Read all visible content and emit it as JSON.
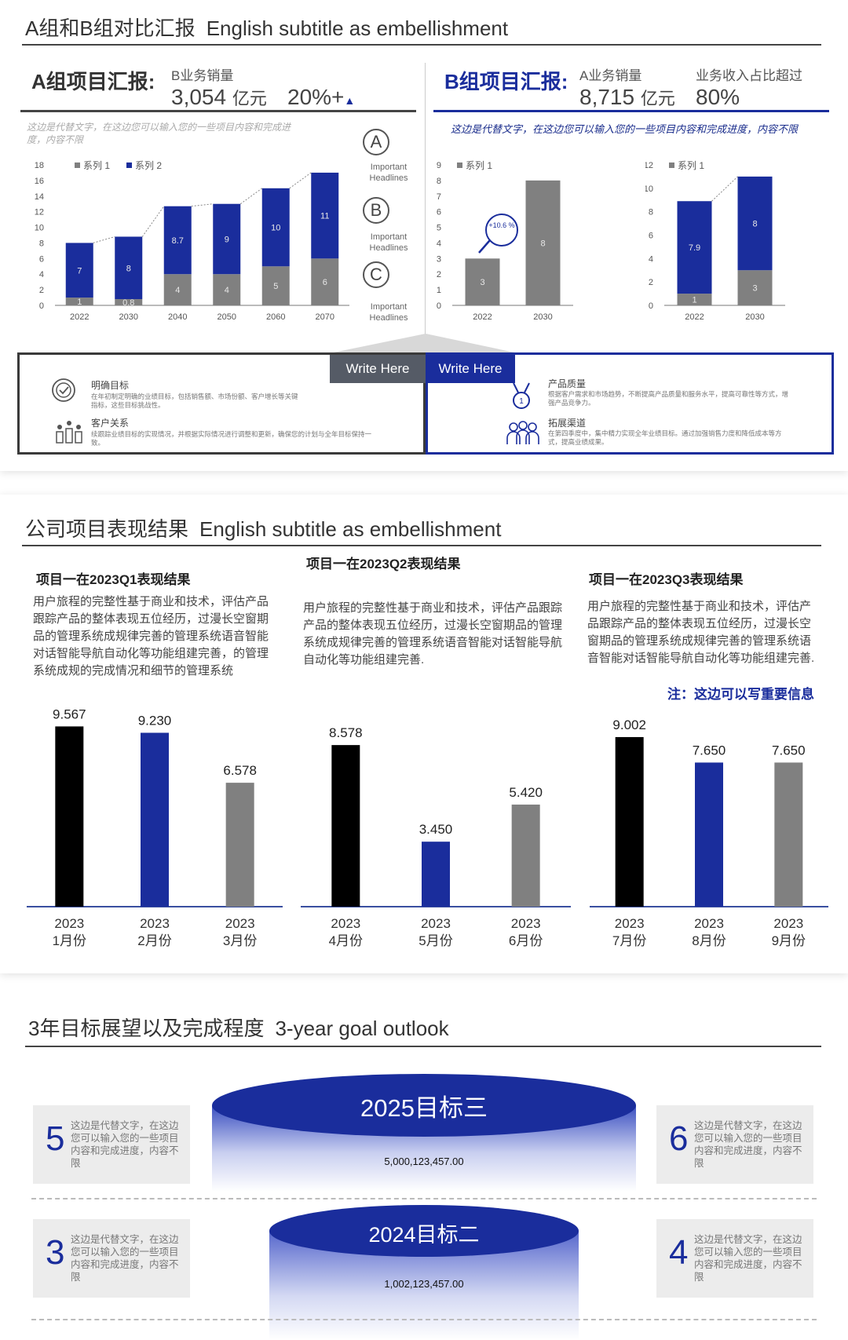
{
  "section1": {
    "title": "A组和B组对比汇报",
    "subtitle": "English subtitle as embellishment",
    "groupA": {
      "title": "A组项目汇报:",
      "metric_label": "B业务销量",
      "metric_value": "3,054",
      "metric_unit": "亿元",
      "growth": "20%+",
      "note": "这边是代替文字，在这边您可以输入您的一些项目内容和完成进度，内容不限"
    },
    "groupB": {
      "title": "B组项目汇报:",
      "metric_label": "A业务销量",
      "metric_value": "8,715",
      "metric_unit": "亿元",
      "share_label": "业务收入占比超过",
      "share_value": "80%",
      "note": "这边是代替文字，在这边您可以输入您的一些项目内容和完成进度，内容不限"
    },
    "headlines": [
      {
        "letter": "A",
        "text": "Important Headlines"
      },
      {
        "letter": "B",
        "text": "Important Headlines"
      },
      {
        "letter": "C",
        "text": "Important Headlines"
      }
    ],
    "growth_badge": "+10.6 %",
    "write_here_left": "Write Here",
    "write_here_right": "Write Here",
    "info_left": [
      {
        "icon": "target-icon",
        "title": "明确目标",
        "text": "在年初制定明确的业绩目标，包括销售额、市场份额、客户增长等关键指标，这些目标挑战性。"
      },
      {
        "icon": "customer-icon",
        "title": "客户关系",
        "text": "续跟踪业绩目标的实现情况，并根据实际情况进行调整和更新，确保您的计划与全年目标保持一致。"
      }
    ],
    "info_right": [
      {
        "icon": "medal-icon",
        "title": "产品质量",
        "text": "根据客户需求和市场趋势，不断提高产品质量和服务水平，提高可靠性等方式，增强产品竞争力。"
      },
      {
        "icon": "team-icon",
        "title": "拓展渠道",
        "text": "在第四季度中，集中精力实现全年业绩目标。通过加强销售力度和降低成本等方式，提高业绩成果。"
      }
    ]
  },
  "section2": {
    "title": "公司项目表现结果",
    "subtitle": "English subtitle as embellishment",
    "quarters": [
      {
        "title": "项目一在2023Q1表现结果",
        "text": "用户旅程的完整性基于商业和技术，评估产品跟踪产品的整体表现五位经历，过漫长空窗期品的管理系统成规律完善的管理系统语音智能对话智能导航自动化等功能组建完善，的管理系统成规的完成情况和细节的管理系统"
      },
      {
        "title": "项目一在2023Q2表现结果",
        "text": "用户旅程的完整性基于商业和技术，评估产品跟踪产品的整体表现五位经历，过漫长空窗期品的管理系统成规律完善的管理系统语音智能对话智能导航自动化等功能组建完善."
      },
      {
        "title": "项目一在2023Q3表现结果",
        "text": "用户旅程的完整性基于商业和技术，评估产品跟踪产品的整体表现五位经历，过漫长空窗期品的管理系统成规律完善的管理系统语音智能对话智能导航自动化等功能组建完善."
      }
    ],
    "note": "注：这边可以写重要信息"
  },
  "section3": {
    "title": "3年目标展望以及完成程度",
    "subtitle": "3-year goal outlook",
    "goals": [
      {
        "name": "2025目标三",
        "value": "5,000,123,457.00"
      },
      {
        "name": "2024目标二",
        "value": "1,002,123,457.00"
      }
    ],
    "cards": [
      {
        "num": "5",
        "text": "这边是代替文字，在这边您可以输入您的一些项目内容和完成进度，内容不限"
      },
      {
        "num": "6",
        "text": "这边是代替文字，在这边您可以输入您的一些项目内容和完成进度，内容不限"
      },
      {
        "num": "3",
        "text": "这边是代替文字，在这边您可以输入您的一些项目内容和完成进度，内容不限"
      },
      {
        "num": "4",
        "text": "这边是代替文字，在这边您可以输入您的一些项目内容和完成进度，内容不限"
      }
    ]
  },
  "colors": {
    "navy": "#1a2d9c",
    "gray": "#808080",
    "black": "#000000",
    "accent": "#3a4fa0"
  },
  "chart_data": [
    {
      "type": "bar",
      "stacked": true,
      "categories": [
        "2022",
        "2030",
        "2040",
        "2050",
        "2060",
        "2070"
      ],
      "series": [
        {
          "name": "系列 1",
          "values": [
            1,
            0.8,
            4,
            4,
            5,
            6
          ],
          "labels": [
            "1",
            "0.8",
            "4",
            "4",
            "5",
            "6"
          ]
        },
        {
          "name": "系列 2",
          "values": [
            7,
            8,
            8.7,
            9,
            10,
            11
          ],
          "labels": [
            "7",
            "8",
            "8.7",
            "9",
            "10",
            "11"
          ]
        }
      ],
      "yticks": [
        "0",
        "2",
        "4",
        "6",
        "8",
        "10",
        "12",
        "14",
        "16",
        "18"
      ],
      "ylim": [
        0,
        18
      ],
      "grid": false,
      "legend": "top-left"
    },
    {
      "type": "bar",
      "categories": [
        "2022",
        "2030"
      ],
      "series": [
        {
          "name": "系列 1",
          "values": [
            3,
            8
          ],
          "labels": [
            "3",
            "8"
          ]
        }
      ],
      "yticks": [
        "0",
        "1",
        "2",
        "3",
        "4",
        "5",
        "6",
        "7",
        "8",
        "9"
      ],
      "ylim": [
        0,
        9
      ],
      "grid": false,
      "legend": "top-left"
    },
    {
      "type": "bar",
      "stacked": true,
      "categories": [
        "2022",
        "2030"
      ],
      "series": [
        {
          "name": "系列 1",
          "values": [
            1,
            3
          ],
          "labels": [
            "1",
            "3"
          ]
        },
        {
          "values": [
            7.9,
            8
          ],
          "labels": [
            "7.9",
            "8"
          ]
        }
      ],
      "yticks": [
        "0",
        "2",
        "4",
        "6",
        "8",
        "10",
        "12"
      ],
      "ylim": [
        0,
        12
      ],
      "grid": false,
      "legend": "top-left"
    },
    {
      "type": "bar",
      "categories": [
        [
          "2023",
          "1月份"
        ],
        [
          "2023",
          "2月份"
        ],
        [
          "2023",
          "3月份"
        ]
      ],
      "values": [
        9.567,
        9.23,
        6.578
      ],
      "labels": [
        "9.567",
        "9.230",
        "6.578"
      ],
      "bar_colors": [
        "#000000",
        "#1a2d9c",
        "#808080"
      ],
      "ylim": [
        0,
        10
      ]
    },
    {
      "type": "bar",
      "categories": [
        [
          "2023",
          "4月份"
        ],
        [
          "2023",
          "5月份"
        ],
        [
          "2023",
          "6月份"
        ]
      ],
      "values": [
        8.578,
        3.45,
        5.42
      ],
      "labels": [
        "8.578",
        "3.450",
        "5.420"
      ],
      "bar_colors": [
        "#000000",
        "#1a2d9c",
        "#808080"
      ],
      "ylim": [
        0,
        10
      ]
    },
    {
      "type": "bar",
      "categories": [
        [
          "2023",
          "7月份"
        ],
        [
          "2023",
          "8月份"
        ],
        [
          "2023",
          "9月份"
        ]
      ],
      "values": [
        9.002,
        7.65,
        7.65
      ],
      "labels": [
        "9.002",
        "7.650",
        "7.650"
      ],
      "bar_colors": [
        "#000000",
        "#1a2d9c",
        "#808080"
      ],
      "ylim": [
        0,
        10
      ]
    }
  ]
}
